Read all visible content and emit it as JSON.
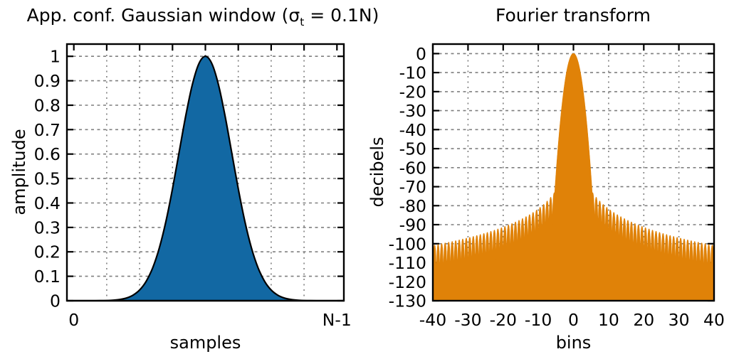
{
  "figure": {
    "background_color": "#ffffff",
    "frame_color": "#000000",
    "grid_color": "#7f7f7f",
    "text_color": "#000000"
  },
  "chart_data": [
    {
      "type": "area",
      "title": "App. conf. Gaussian window (σt = 0.1N)",
      "title_parts": {
        "prefix": "App. conf. Gaussian window (σ",
        "sub": "t",
        "suffix": " = 0.1N)"
      },
      "xlabel": "samples",
      "ylabel": "amplitude",
      "xlim": [
        -0.0263,
        1.0263
      ],
      "ylim": [
        0,
        1.05
      ],
      "grid": true,
      "fill_color": "#1268a3",
      "line_color": "#000000",
      "xticks": {
        "values": [
          0,
          0.125,
          0.25,
          0.375,
          0.5,
          0.625,
          0.75,
          0.875,
          1
        ],
        "labels": [
          "0",
          "",
          "",
          "",
          "",
          "",
          "",
          "",
          "N-1"
        ],
        "grid_values": [
          0.125,
          0.25,
          0.375,
          0.5,
          0.625,
          0.75,
          0.875
        ]
      },
      "yticks": {
        "values": [
          0,
          0.1,
          0.2,
          0.3,
          0.4,
          0.5,
          0.6,
          0.7,
          0.8,
          0.9,
          1
        ],
        "labels": [
          "0",
          "0.1",
          "0.2",
          "0.3",
          "0.4",
          "0.5",
          "0.6",
          "0.7",
          "0.8",
          "0.9",
          "1"
        ],
        "grid_values": [
          0.1,
          0.2,
          0.3,
          0.4,
          0.5,
          0.6,
          0.7,
          0.8,
          0.9,
          1
        ]
      },
      "series": {
        "name": "approximate confined Gaussian window, sigma_t = 0.1N",
        "x_start": 0,
        "x_step": 0.025,
        "y": [
          0,
          0,
          0,
          0.0001,
          0.0003,
          0.0009,
          0.0022,
          0.0051,
          0.0111,
          0.0228,
          0.0439,
          0.0795,
          0.1353,
          0.2163,
          0.3247,
          0.4578,
          0.6065,
          0.7548,
          0.8825,
          0.9692,
          1,
          0.9692,
          0.8825,
          0.7548,
          0.6065,
          0.4578,
          0.3247,
          0.2163,
          0.1353,
          0.0795,
          0.0439,
          0.0228,
          0.0111,
          0.0051,
          0.0022,
          0.0009,
          0.0003,
          0.0001,
          0,
          0,
          0
        ]
      }
    },
    {
      "type": "area",
      "title": "Fourier transform",
      "xlabel": "bins",
      "ylabel": "decibels",
      "xlim": [
        -40,
        40
      ],
      "ylim": [
        -130,
        5
      ],
      "grid": true,
      "fill_color": "#e08208",
      "line_color": "#e08208",
      "xticks": {
        "values": [
          -40,
          -30,
          -20,
          -10,
          0,
          10,
          20,
          30,
          40
        ],
        "labels": [
          "-40",
          "-30",
          "-20",
          "-10",
          "0",
          "10",
          "20",
          "30",
          "40"
        ],
        "grid_values": [
          -30,
          -20,
          -10,
          0,
          10,
          20,
          30
        ]
      },
      "yticks": {
        "values": [
          0,
          -10,
          -20,
          -30,
          -40,
          -50,
          -60,
          -70,
          -80,
          -90,
          -100,
          -110,
          -120,
          -130
        ],
        "labels": [
          "0",
          "-10",
          "-20",
          "-30",
          "-40",
          "-50",
          "-60",
          "-70",
          "-80",
          "-90",
          "-100",
          "-110",
          "-120",
          "-130"
        ],
        "grid_values": [
          0,
          -10,
          -20,
          -30,
          -40,
          -50,
          -60,
          -70,
          -80,
          -90,
          -100,
          -110,
          -120
        ]
      },
      "model": {
        "peak_dB": 0,
        "peak_bin": 0,
        "main_lobe_dB_coeff": -2.6,
        "sidelobe_env_ref_bin": 5,
        "sidelobe_env_ref_dB": -72,
        "sidelobe_env_slope_dB_per_decade": -32,
        "sidelobe_period_bins": 1,
        "sidelobe_notch_floor": 0.17,
        "sample_step_bins": 0.025
      },
      "envelope_readings": {
        "bins": [
          5,
          10,
          20,
          30,
          40
        ],
        "dB": [
          -72,
          -82,
          -91,
          -97,
          -101
        ]
      }
    }
  ]
}
